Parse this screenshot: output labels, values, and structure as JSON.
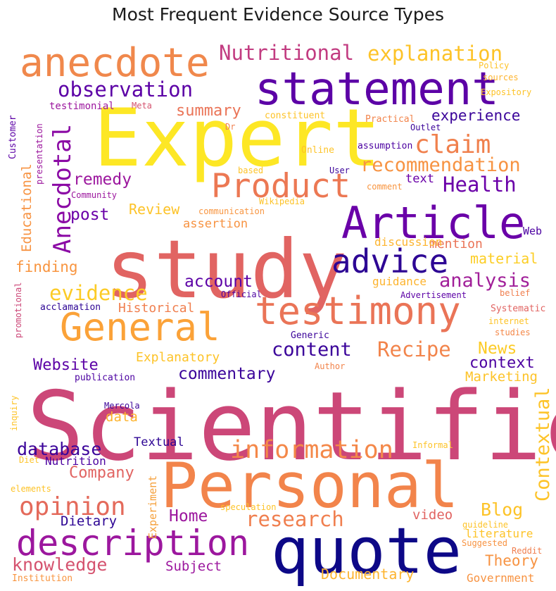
{
  "chart_data": {
    "type": "wordcloud",
    "title": "Most Frequent Evidence Source Types",
    "words": [
      {
        "text": "Scientific",
        "color": "#cc4778"
      },
      {
        "text": "study",
        "color": "#e16462"
      },
      {
        "text": "Expert",
        "color": "#fde725"
      },
      {
        "text": "Personal",
        "color": "#f2844b"
      },
      {
        "text": "quote",
        "color": "#0d0887"
      },
      {
        "text": "statement",
        "color": "#5c01a6"
      },
      {
        "text": "Article",
        "color": "#6a00a8"
      },
      {
        "text": "anecdote",
        "color": "#f0884c"
      },
      {
        "text": "testimony",
        "color": "#ea7457"
      },
      {
        "text": "General",
        "color": "#fba238"
      },
      {
        "text": "description",
        "color": "#9c179e"
      },
      {
        "text": "Product",
        "color": "#ec7853"
      },
      {
        "text": "advice",
        "color": "#2d0594"
      },
      {
        "text": "information",
        "color": "#f48849"
      },
      {
        "text": "opinion",
        "color": "#e46a5b"
      },
      {
        "text": "Anecdotal",
        "color": "#8b0aa5"
      },
      {
        "text": "explanation",
        "color": "#fdc328"
      },
      {
        "text": "Nutritional",
        "color": "#c23c81"
      },
      {
        "text": "observation",
        "color": "#5c01a6"
      },
      {
        "text": "claim",
        "color": "#f0804d"
      },
      {
        "text": "recommendation",
        "color": "#f79342"
      },
      {
        "text": "research",
        "color": "#f07f4f"
      },
      {
        "text": "evidence",
        "color": "#fccb26"
      },
      {
        "text": "analysis",
        "color": "#a11f99"
      },
      {
        "text": "Health",
        "color": "#6a00a8"
      },
      {
        "text": "Recipe",
        "color": "#f2844b"
      },
      {
        "text": "content",
        "color": "#3b049a"
      },
      {
        "text": "database",
        "color": "#3b049a"
      },
      {
        "text": "knowledge",
        "color": "#d5536f"
      },
      {
        "text": "Contextual",
        "color": "#fdc328"
      },
      {
        "text": "Blog",
        "color": "#fdc328"
      },
      {
        "text": "remedy",
        "color": "#9c179e"
      },
      {
        "text": "commentary",
        "color": "#3b049a"
      },
      {
        "text": "Website",
        "color": "#5c01a6"
      },
      {
        "text": "summary",
        "color": "#ea7457"
      },
      {
        "text": "experience",
        "color": "#3b049a"
      },
      {
        "text": "account",
        "color": "#5c01a6"
      },
      {
        "text": "News",
        "color": "#fccb26"
      },
      {
        "text": "context",
        "color": "#4c02a1"
      },
      {
        "text": "Company",
        "color": "#e16462"
      },
      {
        "text": "Home",
        "color": "#9c179e"
      },
      {
        "text": "post",
        "color": "#6a00a8"
      },
      {
        "text": "Educational",
        "color": "#f79342"
      },
      {
        "text": "finding",
        "color": "#f89540"
      },
      {
        "text": "Review",
        "color": "#fdc328"
      },
      {
        "text": "Historical",
        "color": "#f07f4f"
      },
      {
        "text": "material",
        "color": "#fcce25"
      },
      {
        "text": "Theory",
        "color": "#f79342"
      },
      {
        "text": "Documentary",
        "color": "#fdb42f"
      },
      {
        "text": "Subject",
        "color": "#9c179e"
      },
      {
        "text": "Dietary",
        "color": "#2d0594"
      },
      {
        "text": "Marketing",
        "color": "#fdc328"
      },
      {
        "text": "Explanatory",
        "color": "#fdc328"
      },
      {
        "text": "mention",
        "color": "#ea7457"
      },
      {
        "text": "video",
        "color": "#e16462"
      },
      {
        "text": "Government",
        "color": "#f79342"
      },
      {
        "text": "Textual",
        "color": "#2d0594"
      },
      {
        "text": "Nutrition",
        "color": "#4c02a1"
      },
      {
        "text": "data",
        "color": "#fdb42f"
      },
      {
        "text": "assertion",
        "color": "#f79342"
      },
      {
        "text": "discussion",
        "color": "#fdb42f"
      },
      {
        "text": "guidance",
        "color": "#fdb42f"
      },
      {
        "text": "Experiment",
        "color": "#f5a03b"
      },
      {
        "text": "text",
        "color": "#6a00a8"
      },
      {
        "text": "literature",
        "color": "#fdc328"
      },
      {
        "text": "Web",
        "color": "#4c02a1"
      },
      {
        "text": "testimonial",
        "color": "#9c179e"
      },
      {
        "text": "communication",
        "color": "#f89540"
      },
      {
        "text": "Wikipedia",
        "color": "#fdc328"
      },
      {
        "text": "Outlet",
        "color": "#3b049a"
      },
      {
        "text": "Online",
        "color": "#fdc328"
      },
      {
        "text": "assumption",
        "color": "#4c02a1"
      },
      {
        "text": "constituent",
        "color": "#fdc328"
      },
      {
        "text": "Practical",
        "color": "#f2844b"
      },
      {
        "text": "Advertisement",
        "color": "#5c01a6"
      },
      {
        "text": "acclamation",
        "color": "#2d0594"
      },
      {
        "text": "Official",
        "color": "#4c02a1"
      },
      {
        "text": "publication",
        "color": "#4c02a1"
      },
      {
        "text": "Mercola",
        "color": "#3b049a"
      },
      {
        "text": "Generic",
        "color": "#3b049a"
      },
      {
        "text": "Author",
        "color": "#f2844b"
      },
      {
        "text": "Systematic",
        "color": "#e16462"
      },
      {
        "text": "internet",
        "color": "#fdc328"
      },
      {
        "text": "studies",
        "color": "#f48849"
      },
      {
        "text": "belief",
        "color": "#f07f4f"
      },
      {
        "text": "Informal",
        "color": "#fdc328"
      },
      {
        "text": "speculation",
        "color": "#fdc328"
      },
      {
        "text": "guideline",
        "color": "#fdc328"
      },
      {
        "text": "Suggested",
        "color": "#f79342"
      },
      {
        "text": "Reddit",
        "color": "#f07f4f"
      },
      {
        "text": "Institution",
        "color": "#f89540"
      },
      {
        "text": "Customer",
        "color": "#5c01a6"
      },
      {
        "text": "presentation",
        "color": "#9c179e"
      },
      {
        "text": "Community",
        "color": "#9c179e"
      },
      {
        "text": "promotional",
        "color": "#cc4778"
      },
      {
        "text": "Meta",
        "color": "#d5536f"
      },
      {
        "text": "Dr",
        "color": "#f07f4f"
      },
      {
        "text": "based",
        "color": "#fdc328"
      },
      {
        "text": "comment",
        "color": "#f89540"
      },
      {
        "text": "User",
        "color": "#3b049a"
      },
      {
        "text": "Policy",
        "color": "#fdc328"
      },
      {
        "text": "sources",
        "color": "#fdb42f"
      },
      {
        "text": "Expository",
        "color": "#fdc328"
      },
      {
        "text": "Diet",
        "color": "#fdc328"
      },
      {
        "text": "elements",
        "color": "#fdc328"
      },
      {
        "text": "inquiry",
        "color": "#fdc328"
      }
    ]
  }
}
